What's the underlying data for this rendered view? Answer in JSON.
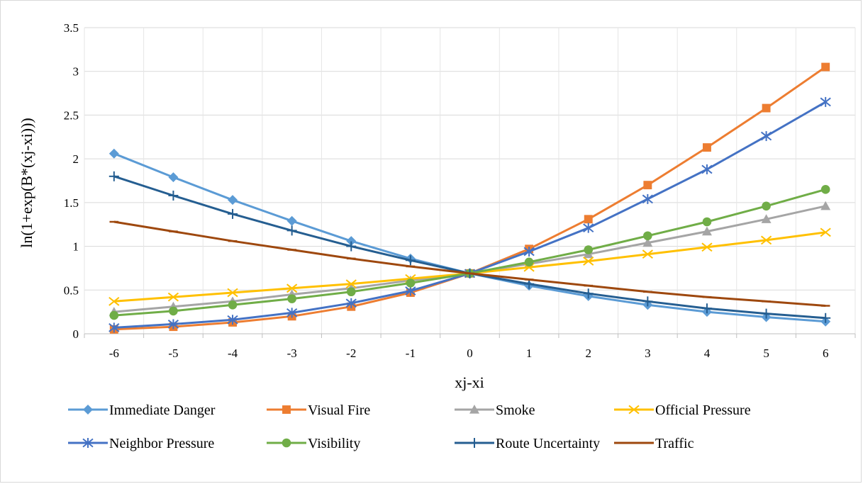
{
  "chart_data": {
    "type": "line",
    "title": "",
    "xlabel": "xj-xi",
    "ylabel": "ln(1+exp(B*(xj-xi)))",
    "x": [
      -6,
      -5,
      -4,
      -3,
      -2,
      -1,
      0,
      1,
      2,
      3,
      4,
      5,
      6
    ],
    "x_tick_labels": [
      "-6",
      "-5",
      "-4",
      "-3",
      "-2",
      "-1",
      "0",
      "1",
      "2",
      "3",
      "4",
      "5",
      "6"
    ],
    "ylim": [
      0,
      3.5
    ],
    "y_ticks": [
      0,
      0.5,
      1,
      1.5,
      2,
      2.5,
      3,
      3.5
    ],
    "y_tick_labels": [
      "0",
      "0.5",
      "1",
      "1.5",
      "2",
      "2.5",
      "3",
      "3.5"
    ],
    "grid": true,
    "legend_position": "bottom",
    "series": [
      {
        "name": "Immediate Danger",
        "color": "#5b9bd5",
        "marker": "diamond",
        "values": [
          2.06,
          1.79,
          1.53,
          1.29,
          1.06,
          0.86,
          0.69,
          0.55,
          0.43,
          0.33,
          0.25,
          0.19,
          0.14
        ]
      },
      {
        "name": "Visual Fire",
        "color": "#ed7d31",
        "marker": "square",
        "values": [
          0.05,
          0.08,
          0.13,
          0.2,
          0.31,
          0.47,
          0.69,
          0.97,
          1.31,
          1.7,
          2.13,
          2.58,
          3.05
        ]
      },
      {
        "name": "Smoke",
        "color": "#a5a5a5",
        "marker": "triangle",
        "values": [
          0.25,
          0.31,
          0.37,
          0.45,
          0.52,
          0.61,
          0.69,
          0.8,
          0.91,
          1.04,
          1.17,
          1.31,
          1.46
        ]
      },
      {
        "name": "Official Pressure",
        "color": "#ffc000",
        "marker": "x",
        "values": [
          0.37,
          0.42,
          0.47,
          0.52,
          0.57,
          0.63,
          0.69,
          0.76,
          0.83,
          0.91,
          0.99,
          1.07,
          1.16
        ]
      },
      {
        "name": "Neighbor Pressure",
        "color": "#4472c4",
        "marker": "star",
        "values": [
          0.07,
          0.11,
          0.16,
          0.24,
          0.35,
          0.49,
          0.69,
          0.94,
          1.21,
          1.54,
          1.88,
          2.26,
          2.65
        ]
      },
      {
        "name": "Visibility",
        "color": "#70ad47",
        "marker": "circle",
        "values": [
          0.21,
          0.26,
          0.33,
          0.4,
          0.48,
          0.58,
          0.69,
          0.82,
          0.96,
          1.12,
          1.28,
          1.46,
          1.65
        ]
      },
      {
        "name": "Route Uncertainty",
        "color": "#255e91",
        "marker": "plus",
        "values": [
          1.8,
          1.58,
          1.37,
          1.18,
          1.0,
          0.84,
          0.69,
          0.57,
          0.46,
          0.37,
          0.29,
          0.23,
          0.18
        ]
      },
      {
        "name": "Traffic",
        "color": "#9e480e",
        "marker": "dash",
        "values": [
          1.28,
          1.17,
          1.06,
          0.96,
          0.86,
          0.77,
          0.69,
          0.62,
          0.55,
          0.48,
          0.42,
          0.37,
          0.32
        ]
      }
    ]
  }
}
